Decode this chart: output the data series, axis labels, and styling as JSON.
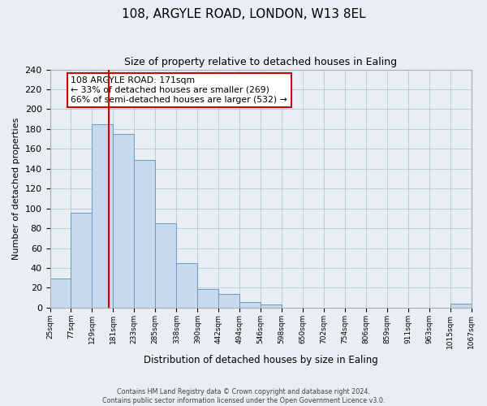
{
  "title": "108, ARGYLE ROAD, LONDON, W13 8EL",
  "subtitle": "Size of property relative to detached houses in Ealing",
  "xlabel": "Distribution of detached houses by size in Ealing",
  "ylabel": "Number of detached properties",
  "bin_edges": [
    25,
    77,
    129,
    181,
    233,
    285,
    338,
    390,
    442,
    494,
    546,
    598,
    650,
    702,
    754,
    806,
    859,
    911,
    963,
    1015,
    1067
  ],
  "bin_counts": [
    29,
    96,
    185,
    175,
    149,
    85,
    45,
    19,
    14,
    6,
    3,
    0,
    0,
    0,
    0,
    0,
    0,
    0,
    0,
    4
  ],
  "bar_facecolor": "#c8d9ed",
  "bar_edgecolor": "#6699cc",
  "property_size": 171,
  "vline_color": "#cc0000",
  "annotation_text": "108 ARGYLE ROAD: 171sqm\n← 33% of detached houses are smaller (269)\n66% of semi-detached houses are larger (532) →",
  "annotation_box_edgecolor": "#cc0000",
  "ylim": [
    0,
    240
  ],
  "yticks": [
    0,
    20,
    40,
    60,
    80,
    100,
    120,
    140,
    160,
    180,
    200,
    220,
    240
  ],
  "background_color": "#e8eef4",
  "plot_background": "#e8eef4",
  "grid_color": "#b8c8d8",
  "footer_line1": "Contains HM Land Registry data © Crown copyright and database right 2024.",
  "footer_line2": "Contains public sector information licensed under the Open Government Licence v3.0."
}
